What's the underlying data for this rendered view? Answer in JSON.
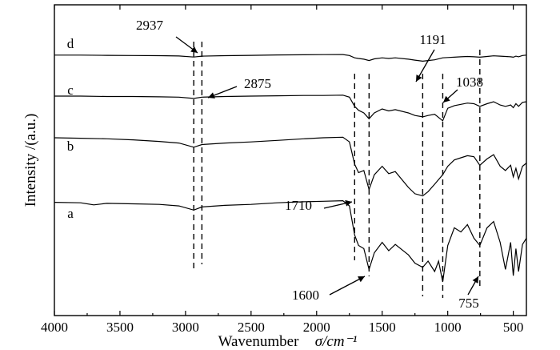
{
  "chart_data": {
    "type": "line",
    "xlabel": "Wavenumber",
    "xlabel_unit": "σ/cm⁻¹",
    "ylabel": "Intensity /(a.u.)",
    "xlim": [
      4000,
      400
    ],
    "x_reversed": true,
    "x_ticks": [
      4000,
      3500,
      3000,
      2500,
      2000,
      1500,
      1000,
      500
    ],
    "grid": false,
    "dashed_reference_lines": [
      2937,
      2875,
      1710,
      1600,
      1191,
      1038,
      755
    ],
    "annotations": [
      {
        "text": "2937",
        "x": 2937,
        "series": "d"
      },
      {
        "text": "2875",
        "x": 2875,
        "series": "c"
      },
      {
        "text": "1191",
        "x": 1191,
        "series": "d"
      },
      {
        "text": "1038",
        "x": 1038,
        "series": "c"
      },
      {
        "text": "1710",
        "x": 1710,
        "series": "b"
      },
      {
        "text": "1600",
        "x": 1600,
        "series": "a"
      },
      {
        "text": "755",
        "x": 755,
        "series": "a"
      }
    ],
    "series": [
      {
        "name": "d",
        "x": [
          4000,
          3800,
          3600,
          3400,
          3200,
          3050,
          2937,
          2875,
          2700,
          2500,
          2300,
          2100,
          1950,
          1800,
          1750,
          1710,
          1680,
          1640,
          1600,
          1560,
          1500,
          1450,
          1400,
          1300,
          1250,
          1191,
          1150,
          1100,
          1038,
          1000,
          950,
          900,
          850,
          800,
          755,
          700,
          650,
          600,
          560,
          520,
          500,
          480,
          460,
          430,
          400
        ],
        "y": [
          98,
          98,
          97.5,
          97,
          96.5,
          95.5,
          92.5,
          95,
          96.5,
          97.5,
          98.5,
          99,
          99.5,
          99.8,
          97,
          90,
          88,
          86,
          82,
          87,
          90,
          88,
          90,
          86,
          83,
          80,
          82,
          84,
          90,
          91,
          92,
          93,
          94,
          93,
          92,
          94,
          96,
          95,
          94,
          93,
          92,
          95,
          93,
          97,
          98
        ]
      },
      {
        "name": "c",
        "x": [
          4000,
          3800,
          3600,
          3400,
          3200,
          3050,
          2937,
          2875,
          2700,
          2500,
          2300,
          2100,
          1950,
          1800,
          1750,
          1710,
          1680,
          1640,
          1600,
          1560,
          1500,
          1450,
          1400,
          1300,
          1250,
          1191,
          1150,
          1100,
          1038,
          1000,
          950,
          900,
          850,
          800,
          755,
          700,
          650,
          600,
          560,
          520,
          500,
          480,
          460,
          430,
          400
        ],
        "y": [
          97.5,
          97.5,
          97,
          97,
          96.5,
          96,
          94,
          96,
          97,
          97.5,
          98,
          98.5,
          98.5,
          99,
          96,
          82,
          76,
          72,
          63,
          72,
          78,
          75,
          77,
          72,
          68,
          66,
          68,
          70,
          60,
          79,
          83,
          85,
          87,
          86,
          82,
          86,
          89,
          84,
          82,
          84,
          80,
          86,
          82,
          88,
          89
        ]
      },
      {
        "name": "b",
        "x": [
          4000,
          3800,
          3600,
          3400,
          3200,
          3050,
          2937,
          2875,
          2700,
          2500,
          2300,
          2100,
          1950,
          1800,
          1750,
          1710,
          1680,
          1640,
          1600,
          1560,
          1500,
          1450,
          1400,
          1300,
          1250,
          1191,
          1150,
          1100,
          1038,
          1000,
          950,
          900,
          850,
          800,
          755,
          700,
          650,
          600,
          560,
          520,
          500,
          480,
          460,
          430,
          400
        ],
        "y": [
          97,
          96.5,
          96,
          95,
          93.5,
          92,
          88,
          90.5,
          92,
          93,
          94.5,
          96,
          97,
          97.5,
          93,
          72,
          64,
          66,
          48,
          62,
          70,
          63,
          65,
          50,
          44,
          42,
          46,
          53,
          62,
          70,
          76,
          78,
          80,
          79,
          71,
          77,
          81,
          70,
          66,
          71,
          60,
          68,
          58,
          70,
          73
        ]
      },
      {
        "name": "a",
        "x": [
          4000,
          3800,
          3700,
          3600,
          3400,
          3200,
          3050,
          2937,
          2875,
          2700,
          2500,
          2300,
          2100,
          1950,
          1800,
          1750,
          1710,
          1680,
          1640,
          1600,
          1560,
          1500,
          1450,
          1400,
          1300,
          1250,
          1191,
          1150,
          1100,
          1070,
          1038,
          1000,
          950,
          900,
          850,
          800,
          755,
          700,
          650,
          600,
          560,
          520,
          500,
          480,
          460,
          430,
          400
        ],
        "y": [
          96.5,
          96,
          94,
          95.5,
          95,
          94.5,
          93,
          89,
          92,
          93.5,
          94.5,
          96,
          97,
          97.5,
          98,
          93,
          65,
          55,
          52,
          32,
          48,
          58,
          50,
          56,
          46,
          38,
          34,
          40,
          30,
          40,
          20,
          55,
          72,
          68,
          75,
          62,
          55,
          72,
          78,
          58,
          32,
          58,
          26,
          52,
          30,
          56,
          62
        ]
      }
    ]
  }
}
